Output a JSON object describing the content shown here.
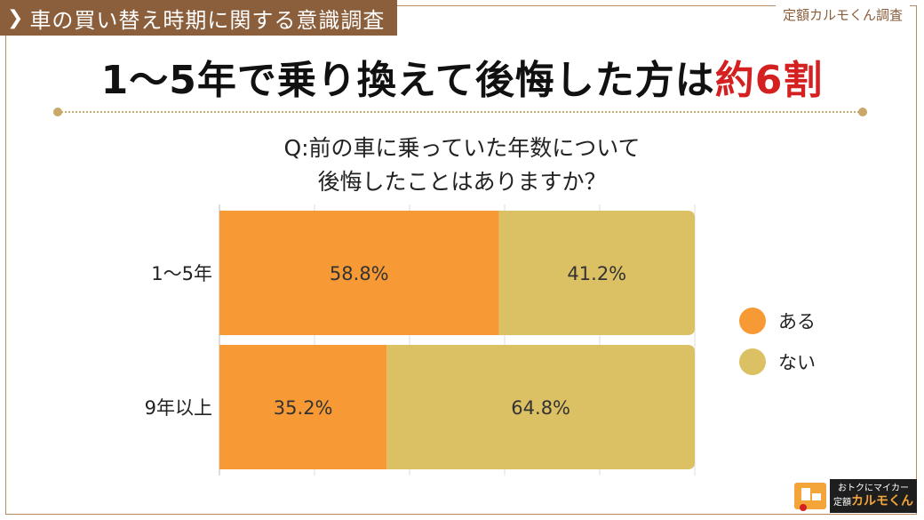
{
  "header": {
    "tag": "車の買い替え時期に関する意識調査",
    "source": "定額カルモくん調査",
    "headline_main": "1～5年で乗り換えて後悔した方は",
    "headline_accent": "約6割",
    "question_line1": "Q:前の車に乗っていた年数について",
    "question_line2": "後悔したことはありますか？"
  },
  "brand": {
    "tagline": "おトクにマイカー",
    "name_prefix": "定額",
    "name": "カルモくん"
  },
  "colors": {
    "yes": "#f79a36",
    "no": "#dcc064",
    "brand": "#8b5e3c",
    "accent": "#d42020"
  },
  "chart_data": {
    "type": "bar",
    "orientation": "horizontal",
    "stacked": true,
    "percent": true,
    "categories": [
      "1～5年",
      "9年以上"
    ],
    "series": [
      {
        "name": "ある",
        "values": [
          58.8,
          35.2
        ],
        "labels": [
          "58.8%",
          "35.2%"
        ]
      },
      {
        "name": "ない",
        "values": [
          41.2,
          64.8
        ],
        "labels": [
          "41.2%",
          "64.8%"
        ]
      }
    ],
    "xlim": [
      0,
      100
    ],
    "legend": "right"
  }
}
